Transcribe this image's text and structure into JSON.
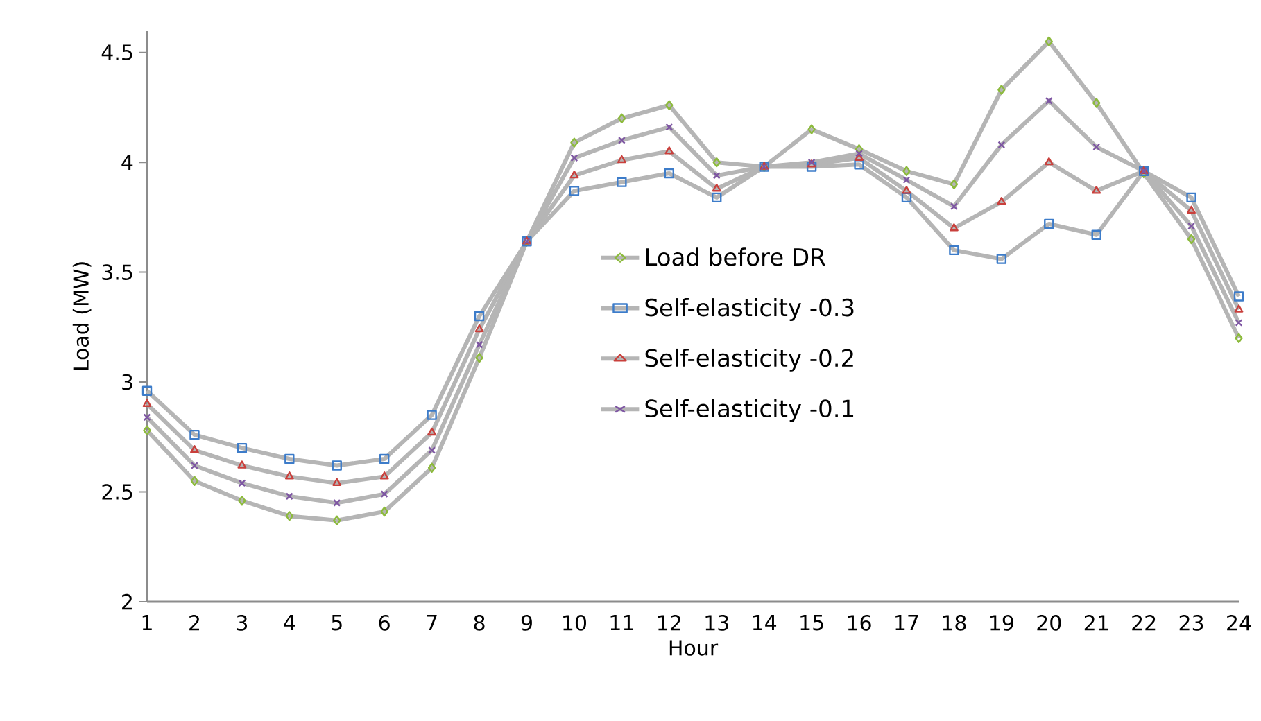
{
  "chart_data": {
    "type": "line",
    "xlabel": "Hour",
    "ylabel": "Load (MW)",
    "categories": [
      "1",
      "2",
      "3",
      "4",
      "5",
      "6",
      "7",
      "8",
      "9",
      "10",
      "11",
      "12",
      "13",
      "14",
      "15",
      "16",
      "17",
      "18",
      "19",
      "20",
      "21",
      "22",
      "23",
      "24"
    ],
    "ylim": [
      2,
      4.6
    ],
    "yticks": [
      2,
      2.5,
      3,
      3.5,
      4,
      4.5
    ],
    "grid": false,
    "legend": "center",
    "line_style": "solid",
    "series": [
      {
        "name": "Load before DR",
        "color": "#8cba3c",
        "marker": "diamond",
        "values": [
          2.78,
          2.55,
          2.46,
          2.39,
          2.37,
          2.41,
          2.61,
          3.11,
          3.64,
          4.09,
          4.2,
          4.26,
          4.0,
          3.98,
          4.15,
          4.06,
          3.96,
          3.9,
          4.33,
          4.55,
          4.27,
          3.95,
          3.65,
          3.2
        ]
      },
      {
        "name": "Self-elasticity -0.3",
        "color": "#3d7cc9",
        "marker": "square",
        "values": [
          2.96,
          2.76,
          2.7,
          2.65,
          2.62,
          2.65,
          2.85,
          3.3,
          3.64,
          3.87,
          3.91,
          3.95,
          3.84,
          3.98,
          3.98,
          3.99,
          3.84,
          3.6,
          3.56,
          3.72,
          3.67,
          3.96,
          3.84,
          3.39
        ]
      },
      {
        "name": "Self-elasticity -0.2",
        "color": "#c9403c",
        "marker": "triangle",
        "values": [
          2.9,
          2.69,
          2.62,
          2.57,
          2.54,
          2.57,
          2.77,
          3.24,
          3.64,
          3.94,
          4.01,
          4.05,
          3.88,
          3.98,
          3.99,
          4.02,
          3.87,
          3.7,
          3.82,
          4.0,
          3.87,
          3.96,
          3.78,
          3.33
        ]
      },
      {
        "name": "Self-elasticity -0.1",
        "color": "#7e56a3",
        "marker": "cross",
        "values": [
          2.84,
          2.62,
          2.54,
          2.48,
          2.45,
          2.49,
          2.69,
          3.17,
          3.64,
          4.02,
          4.1,
          4.16,
          3.94,
          3.98,
          4.0,
          4.04,
          3.92,
          3.8,
          4.08,
          4.28,
          4.07,
          3.96,
          3.71,
          3.27
        ]
      }
    ]
  }
}
